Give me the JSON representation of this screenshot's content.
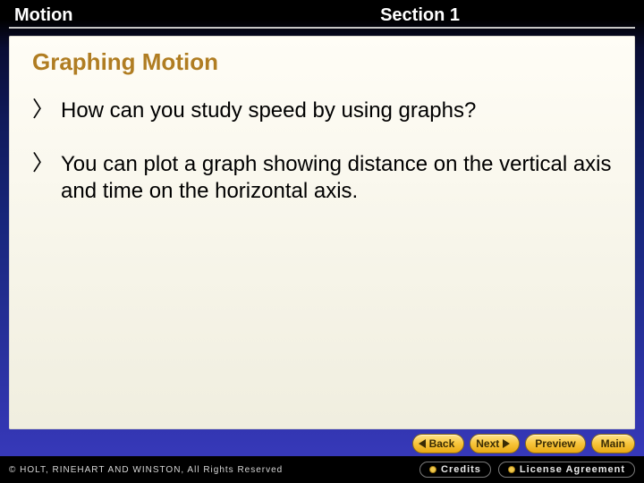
{
  "header": {
    "left": "Motion",
    "right": "Section 1"
  },
  "content": {
    "title": "Graphing Motion",
    "title_color": "#b07d22",
    "bullets": [
      "How can you study speed by using graphs?",
      "You can plot a graph showing distance on the vertical axis and time on the horizontal axis."
    ],
    "bullet_glyph": "〉",
    "text_color": "#000000",
    "title_fontsize": 26,
    "body_fontsize": 24,
    "panel_bg_top": "#fffdf6",
    "panel_bg_bottom": "#f0eedf"
  },
  "nav": {
    "back": "Back",
    "next": "Next",
    "preview": "Preview",
    "main": "Main",
    "button_bg_top": "#ffe28a",
    "button_bg_bottom": "#e9a914",
    "button_text_color": "#3a2c05"
  },
  "footer": {
    "copyright": "© HOLT, RINEHART AND WINSTON, All Rights Reserved",
    "credits": "Credits",
    "license": "License Agreement"
  },
  "background": {
    "gradient_stops": [
      "#000000",
      "#0a0d33",
      "#101a5a",
      "#17267a",
      "#27309a",
      "#3a3ac0"
    ]
  }
}
